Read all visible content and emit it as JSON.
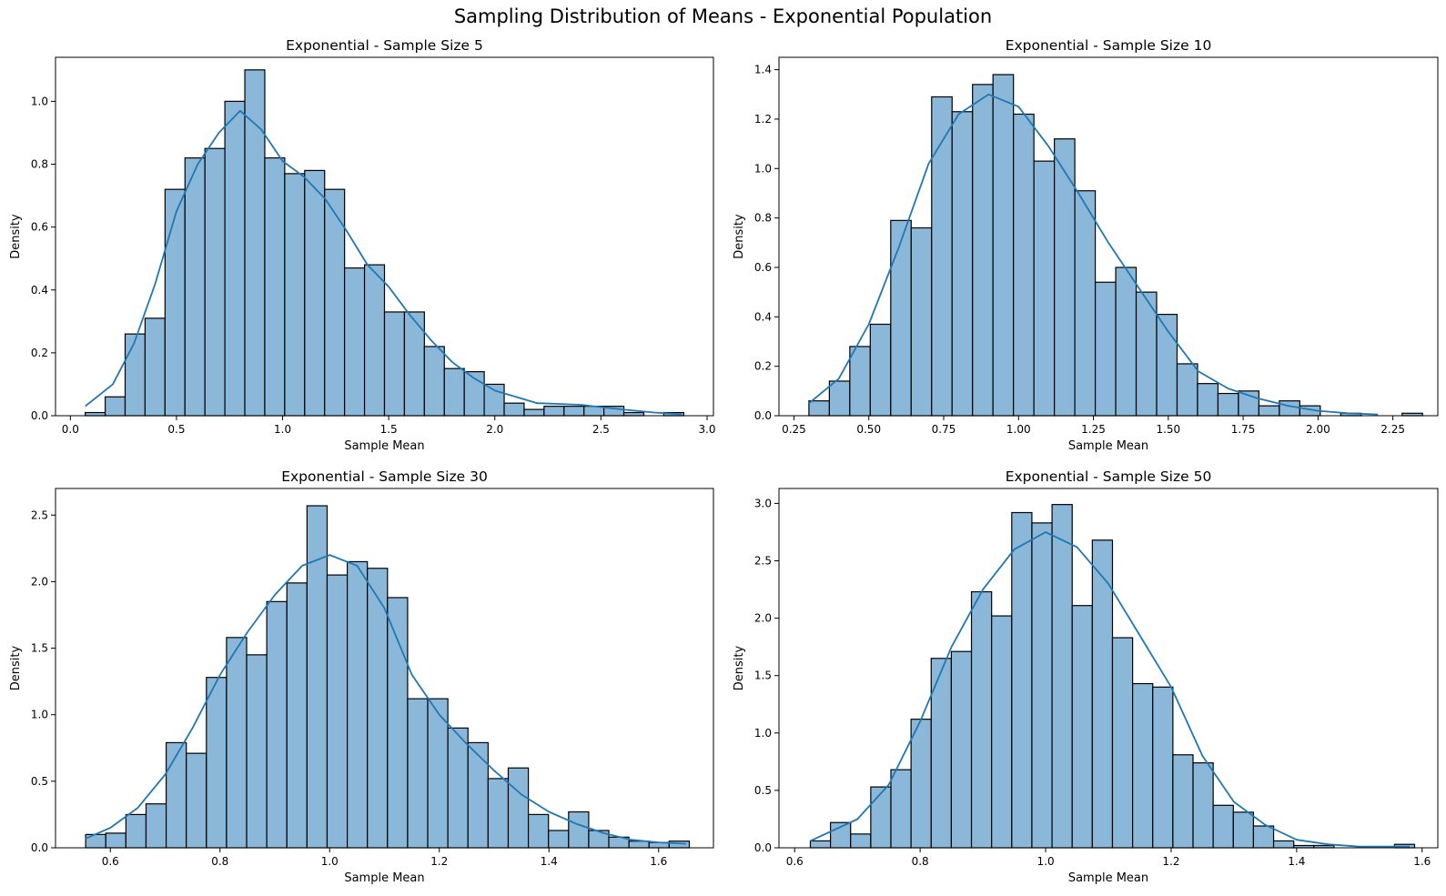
{
  "figure": {
    "suptitle": "Sampling Distribution of Means - Exponential Population",
    "bar_fill": "#8bb8d9",
    "bar_edge": "#000000",
    "kde_color": "#1f77b4"
  },
  "chart_data": [
    {
      "type": "bar",
      "title": "Exponential - Sample Size 5",
      "xlabel": "Sample Mean",
      "ylabel": "Density",
      "xlim": [
        -0.07,
        3.03
      ],
      "ylim": [
        0,
        1.14
      ],
      "xticks": [
        0.0,
        0.5,
        1.0,
        1.5,
        2.0,
        2.5,
        3.0
      ],
      "xtick_labels": [
        "0.0",
        "0.5",
        "1.0",
        "1.5",
        "2.0",
        "2.5",
        "3.0"
      ],
      "yticks": [
        0.0,
        0.2,
        0.4,
        0.6,
        0.8,
        1.0
      ],
      "ytick_labels": [
        "0.0",
        "0.2",
        "0.4",
        "0.6",
        "0.8",
        "1.0"
      ],
      "bin_start": 0.07,
      "bin_width": 0.094,
      "values": [
        0.01,
        0.06,
        0.26,
        0.31,
        0.72,
        0.82,
        0.85,
        1.0,
        1.1,
        0.82,
        0.77,
        0.78,
        0.72,
        0.47,
        0.48,
        0.33,
        0.33,
        0.22,
        0.15,
        0.14,
        0.1,
        0.04,
        0.02,
        0.03,
        0.03,
        0.03,
        0.03,
        0.01,
        0.0,
        0.01
      ],
      "kde": {
        "x": [
          0.07,
          0.2,
          0.3,
          0.4,
          0.5,
          0.6,
          0.7,
          0.8,
          0.9,
          1.0,
          1.1,
          1.2,
          1.3,
          1.4,
          1.5,
          1.6,
          1.7,
          1.8,
          1.9,
          2.0,
          2.2,
          2.4,
          2.6,
          2.75,
          2.88
        ],
        "y": [
          0.03,
          0.1,
          0.23,
          0.42,
          0.65,
          0.8,
          0.9,
          0.97,
          0.91,
          0.81,
          0.76,
          0.69,
          0.59,
          0.48,
          0.41,
          0.32,
          0.24,
          0.17,
          0.12,
          0.08,
          0.04,
          0.035,
          0.02,
          0.01,
          0.005
        ]
      }
    },
    {
      "type": "bar",
      "title": "Exponential - Sample Size 10",
      "xlabel": "Sample Mean",
      "ylabel": "Density",
      "xlim": [
        0.2,
        2.4
      ],
      "ylim": [
        0,
        1.45
      ],
      "xticks": [
        0.25,
        0.5,
        0.75,
        1.0,
        1.25,
        1.5,
        1.75,
        2.0,
        2.25
      ],
      "xtick_labels": [
        "0.25",
        "0.50",
        "0.75",
        "1.00",
        "1.25",
        "1.50",
        "1.75",
        "2.00",
        "2.25"
      ],
      "yticks": [
        0.0,
        0.2,
        0.4,
        0.6,
        0.8,
        1.0,
        1.2,
        1.4
      ],
      "ytick_labels": [
        "0.0",
        "0.2",
        "0.4",
        "0.6",
        "0.8",
        "1.0",
        "1.2",
        "1.4"
      ],
      "bin_start": 0.3,
      "bin_width": 0.0683,
      "values": [
        0.06,
        0.14,
        0.28,
        0.37,
        0.79,
        0.76,
        1.29,
        1.23,
        1.34,
        1.38,
        1.22,
        1.03,
        1.12,
        0.91,
        0.54,
        0.6,
        0.5,
        0.41,
        0.21,
        0.13,
        0.09,
        0.1,
        0.04,
        0.06,
        0.04,
        0.0,
        0.01,
        0.0,
        0.0,
        0.01
      ],
      "kde": {
        "x": [
          0.3,
          0.4,
          0.5,
          0.6,
          0.7,
          0.8,
          0.9,
          1.0,
          1.1,
          1.2,
          1.3,
          1.4,
          1.5,
          1.6,
          1.7,
          1.8,
          1.9,
          2.0,
          2.1,
          2.2
        ],
        "y": [
          0.05,
          0.15,
          0.37,
          0.68,
          1.02,
          1.22,
          1.3,
          1.25,
          1.09,
          0.9,
          0.7,
          0.52,
          0.34,
          0.18,
          0.11,
          0.07,
          0.04,
          0.02,
          0.01,
          0.005
        ]
      }
    },
    {
      "type": "bar",
      "title": "Exponential - Sample Size 30",
      "xlabel": "Sample Mean",
      "ylabel": "Density",
      "xlim": [
        0.5,
        1.7
      ],
      "ylim": [
        0,
        2.7
      ],
      "xticks": [
        0.6,
        0.8,
        1.0,
        1.2,
        1.4,
        1.6
      ],
      "xtick_labels": [
        "0.6",
        "0.8",
        "1.0",
        "1.2",
        "1.4",
        "1.6"
      ],
      "yticks": [
        0.0,
        0.5,
        1.0,
        1.5,
        2.0,
        2.5
      ],
      "ytick_labels": [
        "0.0",
        "0.5",
        "1.0",
        "1.5",
        "2.0",
        "2.5"
      ],
      "bin_start": 0.555,
      "bin_width": 0.0367,
      "values": [
        0.1,
        0.11,
        0.25,
        0.33,
        0.79,
        0.71,
        1.28,
        1.58,
        1.45,
        1.85,
        1.99,
        2.57,
        2.05,
        2.15,
        2.1,
        1.88,
        1.12,
        1.12,
        0.9,
        0.79,
        0.52,
        0.6,
        0.25,
        0.13,
        0.27,
        0.13,
        0.08,
        0.05,
        0.04,
        0.05
      ],
      "kde": {
        "x": [
          0.555,
          0.6,
          0.65,
          0.7,
          0.75,
          0.8,
          0.85,
          0.9,
          0.95,
          1.0,
          1.05,
          1.1,
          1.15,
          1.2,
          1.25,
          1.3,
          1.35,
          1.4,
          1.45,
          1.5,
          1.55,
          1.6,
          1.65
        ],
        "y": [
          0.07,
          0.15,
          0.3,
          0.55,
          0.9,
          1.3,
          1.62,
          1.9,
          2.12,
          2.2,
          2.12,
          1.8,
          1.3,
          1.0,
          0.78,
          0.58,
          0.4,
          0.27,
          0.18,
          0.11,
          0.06,
          0.04,
          0.03
        ]
      }
    },
    {
      "type": "bar",
      "title": "Exponential - Sample Size 50",
      "xlabel": "Sample Mean",
      "ylabel": "Density",
      "xlim": [
        0.575,
        1.625
      ],
      "ylim": [
        0,
        3.13
      ],
      "xticks": [
        0.6,
        0.8,
        1.0,
        1.2,
        1.4,
        1.6
      ],
      "xtick_labels": [
        "0.6",
        "0.8",
        "1.0",
        "1.2",
        "1.4",
        "1.6"
      ],
      "yticks": [
        0.0,
        0.5,
        1.0,
        1.5,
        2.0,
        2.5,
        3.0
      ],
      "ytick_labels": [
        "0.0",
        "0.5",
        "1.0",
        "1.5",
        "2.0",
        "2.5",
        "3.0"
      ],
      "bin_start": 0.625,
      "bin_width": 0.0321,
      "values": [
        0.06,
        0.22,
        0.12,
        0.53,
        0.68,
        1.12,
        1.65,
        1.71,
        2.23,
        2.02,
        2.92,
        2.83,
        2.99,
        2.11,
        2.68,
        1.83,
        1.43,
        1.4,
        0.81,
        0.74,
        0.37,
        0.31,
        0.19,
        0.06,
        0.02,
        0.02,
        0.0,
        0.0,
        0.0,
        0.03
      ],
      "kde": {
        "x": [
          0.625,
          0.7,
          0.75,
          0.8,
          0.85,
          0.9,
          0.95,
          1.0,
          1.05,
          1.1,
          1.15,
          1.2,
          1.25,
          1.3,
          1.35,
          1.4,
          1.45,
          1.5,
          1.55,
          1.58
        ],
        "y": [
          0.06,
          0.25,
          0.55,
          1.1,
          1.75,
          2.25,
          2.6,
          2.75,
          2.62,
          2.3,
          1.85,
          1.4,
          0.8,
          0.4,
          0.2,
          0.07,
          0.03,
          0.01,
          0.01,
          0.01
        ]
      }
    }
  ]
}
